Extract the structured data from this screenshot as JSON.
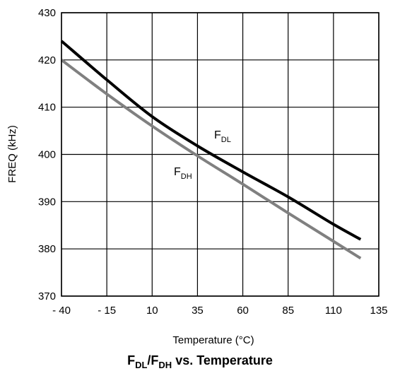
{
  "chart_data": {
    "type": "line",
    "title": "",
    "caption": {
      "part1_main": "F",
      "part1_sub": "DL",
      "slash": "/",
      "part2_main": "F",
      "part2_sub": "DH",
      "suffix": " vs. Temperature"
    },
    "xlabel": "Temperature (°C)",
    "ylabel": "FREQ (kHz)",
    "xlim": [
      -40,
      135
    ],
    "ylim": [
      370,
      430
    ],
    "x_ticks": [
      -40,
      -15,
      10,
      35,
      60,
      85,
      110,
      135
    ],
    "x_tick_labels": [
      "- 40",
      "- 15",
      "10",
      "35",
      "60",
      "85",
      "110",
      "135"
    ],
    "y_ticks": [
      370,
      380,
      390,
      400,
      410,
      420,
      430
    ],
    "y_tick_labels": [
      "370",
      "380",
      "390",
      "400",
      "410",
      "420",
      "430"
    ],
    "grid": true,
    "series": [
      {
        "name": "F_DL",
        "label_main": "F",
        "label_sub": "DL",
        "color": "#000000",
        "x": [
          -40,
          -15,
          10,
          35,
          60,
          85,
          110,
          125
        ],
        "y": [
          424,
          415.8,
          408,
          401.8,
          396.3,
          391,
          385.2,
          382
        ]
      },
      {
        "name": "F_DH",
        "label_main": "F",
        "label_sub": "DH",
        "color": "#808080",
        "x": [
          -40,
          -15,
          10,
          35,
          60,
          85,
          110,
          125
        ],
        "y": [
          420,
          412.8,
          406,
          399.7,
          393.7,
          387.6,
          381.6,
          378
        ]
      }
    ]
  }
}
